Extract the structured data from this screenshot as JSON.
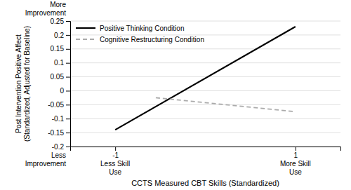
{
  "chart_data": {
    "type": "line",
    "x_label": "CCTS Measured CBT Skills (Standardized)",
    "y_label": "Post Intervention Positive Affect\n(Standardized, Adjusted for Baseline)",
    "xlim": [
      -1.5,
      1.5
    ],
    "ylim": [
      -0.2,
      0.25
    ],
    "xticks": [
      -1,
      1
    ],
    "yticks": [
      -0.2,
      -0.15,
      -0.1,
      -0.05,
      0,
      0.05,
      0.1,
      0.15,
      0.2,
      0.25
    ],
    "grid": "y",
    "legend": "top-left",
    "series": [
      {
        "name": "Positive Thinking Condition",
        "color": "#000000",
        "line_style": "solid",
        "x": [
          -1,
          1
        ],
        "values": [
          -0.14,
          0.23
        ]
      },
      {
        "name": "Cognitive Restructuring Condition",
        "color": "#aaaaaa",
        "line_style": "dashed",
        "x": [
          -0.55,
          1
        ],
        "values": [
          -0.025,
          -0.075
        ]
      }
    ],
    "annotations": [
      {
        "text": "More\nImprovement"
      },
      {
        "text": "Less\nImprovement"
      },
      {
        "text": "Less Skill\nUse",
        "x": -1
      },
      {
        "text": "More Skill\nUse",
        "x": 1
      }
    ]
  }
}
